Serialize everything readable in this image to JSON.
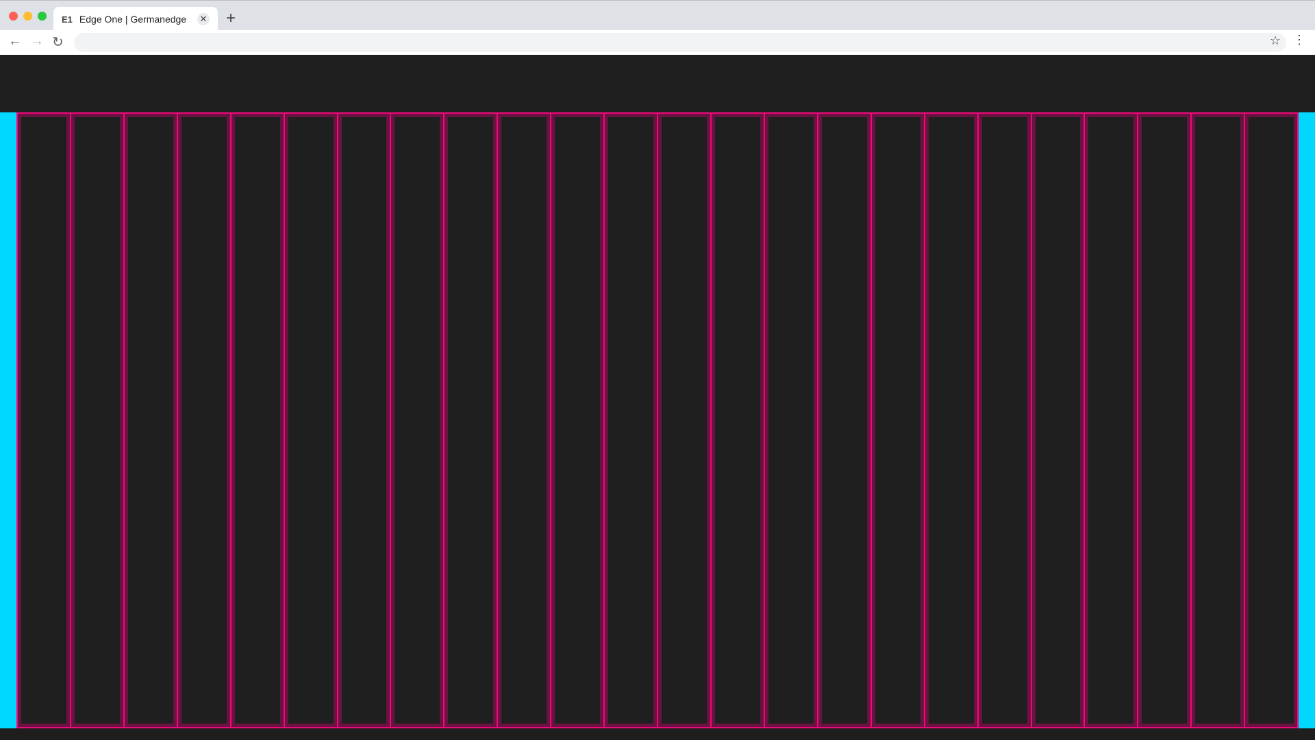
{
  "browser": {
    "tab": {
      "favicon_text": "E1",
      "title": "Edge One | Germanedge",
      "close": "✕"
    },
    "new_tab": "+",
    "nav": {
      "back": "←",
      "forward": "→",
      "reload": "↻"
    },
    "address": "",
    "bookmark": "☆",
    "menu": "⋮"
  },
  "page": {
    "grid_columns": 24,
    "colors": {
      "accent_cyan": "#00d8ff",
      "grid_line": "#f0087c",
      "background": "#1e1e1e"
    }
  }
}
